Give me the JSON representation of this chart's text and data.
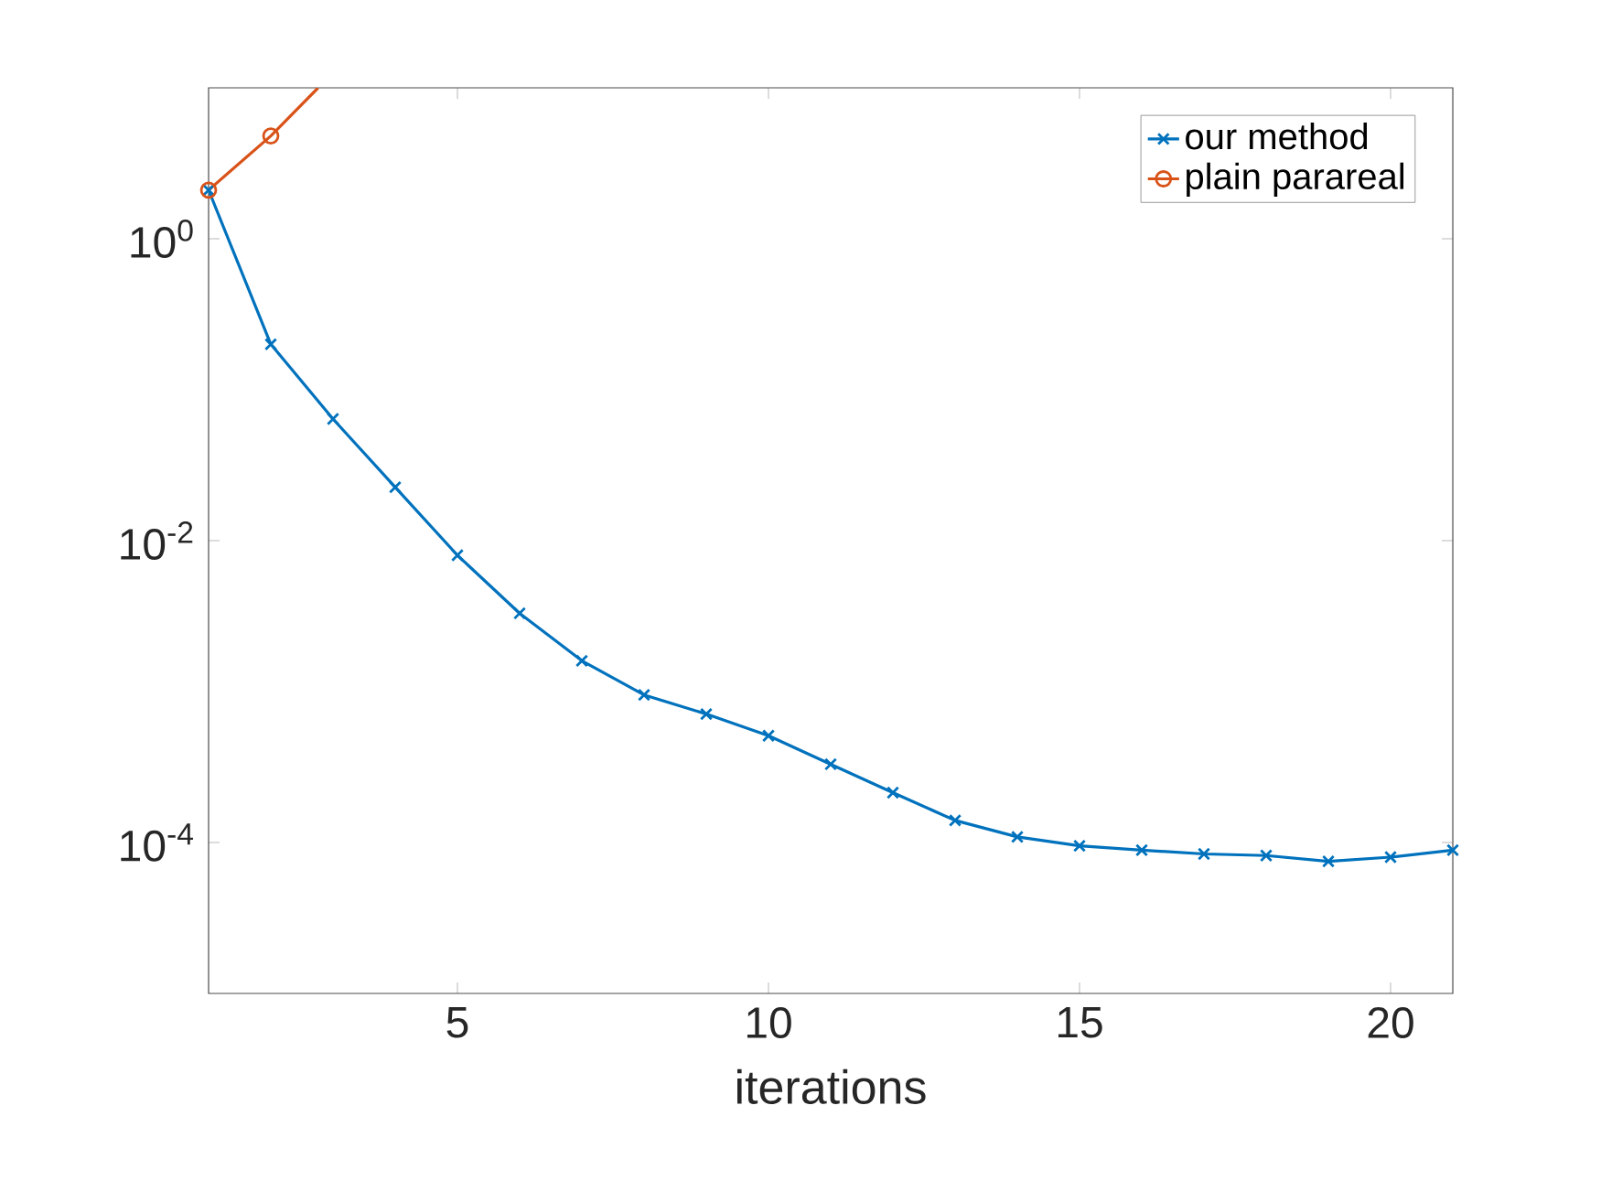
{
  "chart_data": {
    "type": "line",
    "xlabel": "iterations",
    "x": [
      1,
      2,
      3,
      4,
      5,
      6,
      7,
      8,
      9,
      10,
      11,
      12,
      13,
      14,
      15,
      16,
      17,
      18,
      19,
      20,
      21
    ],
    "series": [
      {
        "name": "our method",
        "color": "#0072bd",
        "marker": "cross",
        "values": [
          2.1,
          0.2,
          0.064,
          0.0226,
          0.008,
          0.0033,
          0.0016,
          0.00095,
          0.00071,
          0.00051,
          0.00033,
          0.000214,
          0.00014,
          0.000109,
          9.5e-05,
          8.9e-05,
          8.4e-05,
          8.2e-05,
          7.5e-05,
          8e-05,
          8.9e-05
        ]
      },
      {
        "name": "plain parareal",
        "color": "#d95319",
        "marker": "circle",
        "x": [
          1,
          2,
          2.76
        ],
        "values": [
          2.1,
          4.8,
          10
        ]
      }
    ],
    "log": "y",
    "xlim": [
      1,
      21
    ],
    "ylim": [
      1e-05,
      10
    ],
    "xticks": [
      5,
      10,
      15,
      20
    ],
    "yticks": [
      {
        "value": 0.0001,
        "label": "10$^{-4}$"
      },
      {
        "value": 0.01,
        "label": "10$^{-2}$"
      },
      {
        "value": 1,
        "label": "10$^{0}$"
      }
    ],
    "legend": "top right",
    "grid": false
  }
}
